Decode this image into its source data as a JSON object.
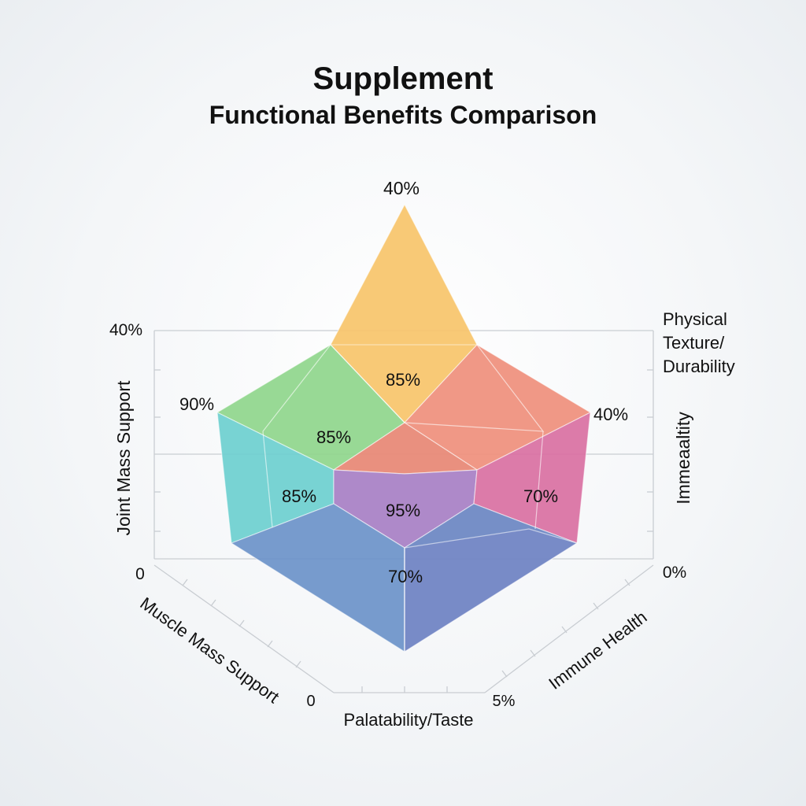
{
  "title": "Supplement",
  "subtitle": "Functional Benefits Comparison",
  "chart_data": {
    "type": "radar",
    "axes": [
      {
        "name": "Joint  Mass Support",
        "value": "90%"
      },
      {
        "name": "Physical Texture/ Durability",
        "value": "40%"
      },
      {
        "name": "Immeaaltity",
        "value": "40%"
      },
      {
        "name": "Immune Health",
        "value": "5%"
      },
      {
        "name": "Palatability/Taste",
        "value": "0"
      },
      {
        "name": "Muscle Mass Support",
        "value": "0"
      }
    ],
    "peak_label": "40%",
    "inner_values": [
      "85%",
      "85%",
      "85%",
      "95%",
      "70%",
      "70%"
    ],
    "scale_labels": {
      "top_left": "40%",
      "bottom_left": "0",
      "bottom_right": "0%"
    },
    "axis_title_left": "Joint  Mass Support",
    "axis_title_right": "Immeaaltity",
    "legend_label_top_right": "Physical Texture/ Durability",
    "colors": {
      "yellow": "#f7c46a",
      "green": "#8fd68c",
      "salmon": "#ef8f7c",
      "teal": "#6ccfcf",
      "purple": "#a77fc4",
      "pink": "#d970a2",
      "blue": "#6b93c9"
    }
  }
}
